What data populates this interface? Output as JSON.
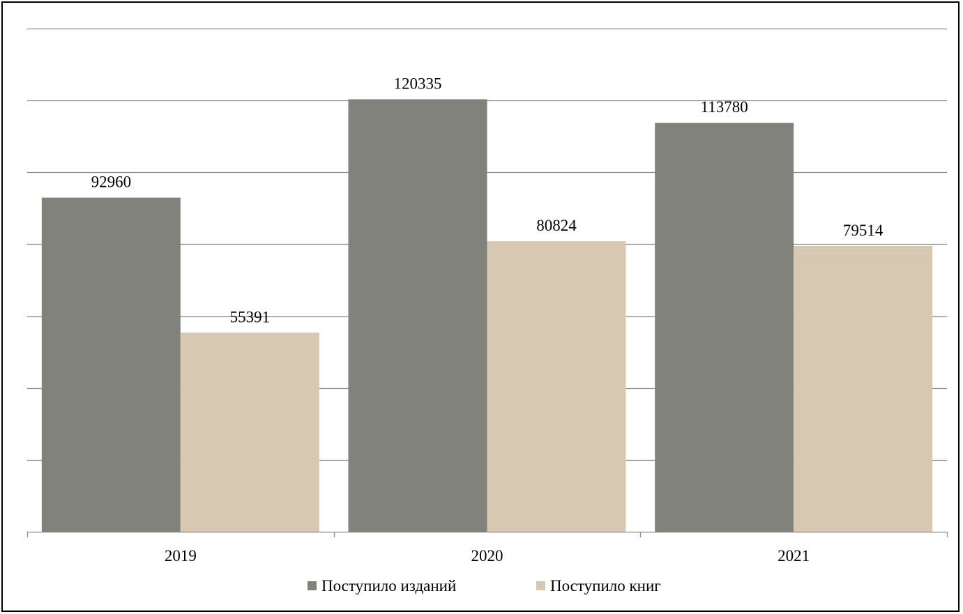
{
  "chart_data": {
    "type": "bar",
    "categories": [
      "2019",
      "2020",
      "2021"
    ],
    "series": [
      {
        "name": "Поступило изданий",
        "values": [
          92960,
          120335,
          113780
        ],
        "color": "#82827c"
      },
      {
        "name": "Поступило книг",
        "values": [
          55391,
          80824,
          79514
        ],
        "color": "#d7c8b2"
      }
    ],
    "title": "",
    "xlabel": "",
    "ylabel": "",
    "ylim": [
      0,
      140000
    ],
    "y_gridline_step": 20000,
    "y_tick_labels_shown": false,
    "grid": true,
    "legend_position": "bottom",
    "data_labels": true
  }
}
